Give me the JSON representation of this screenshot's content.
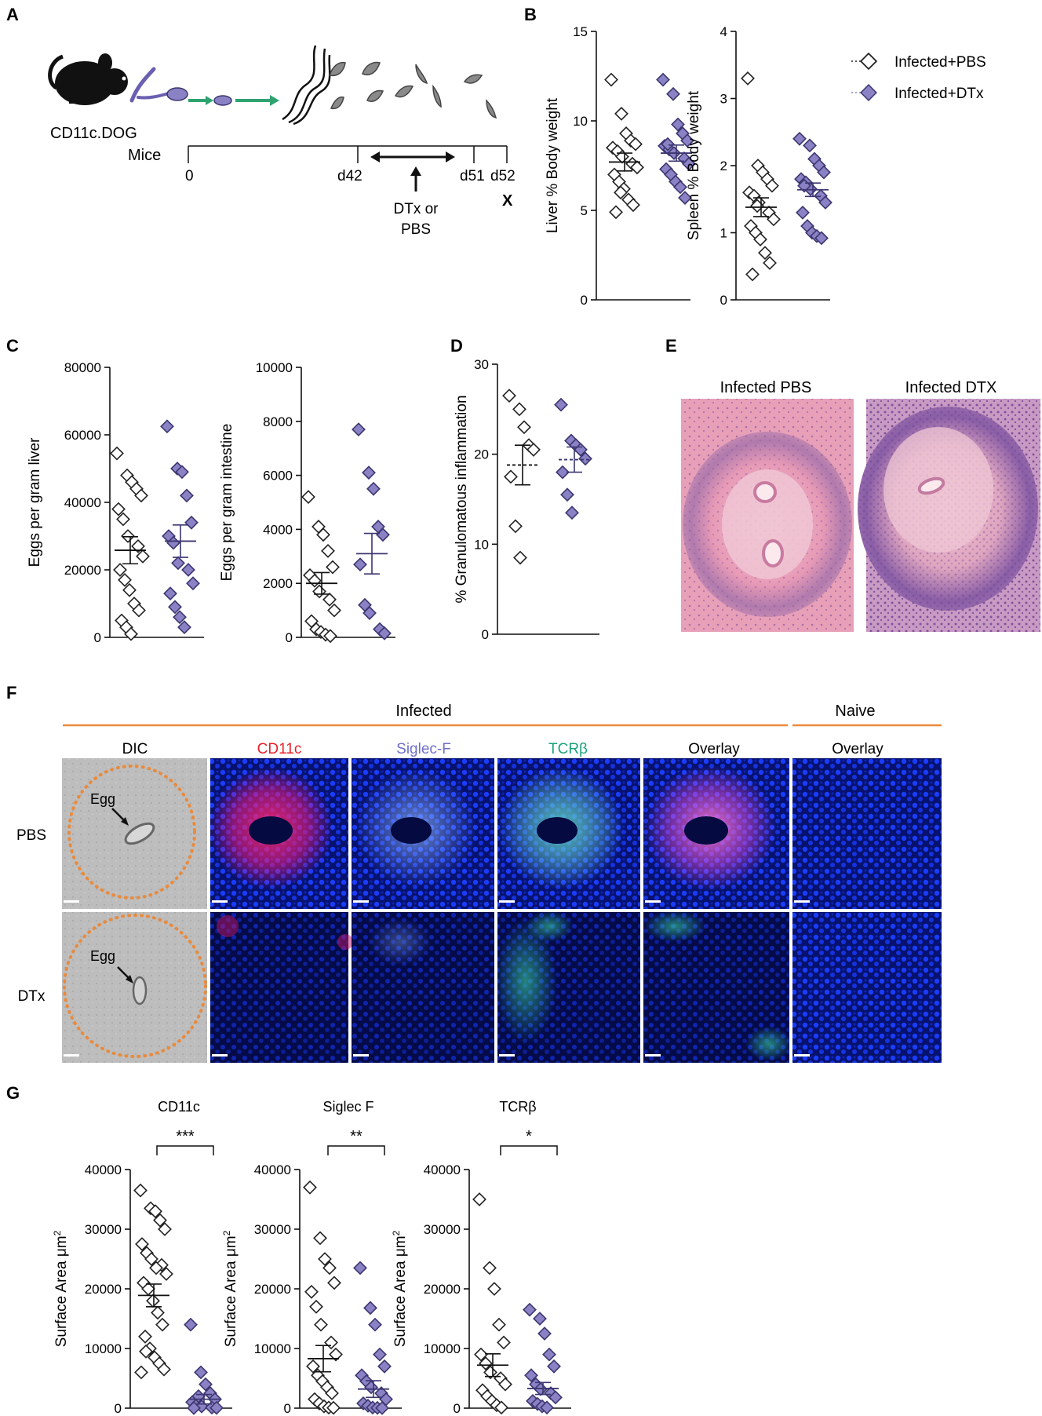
{
  "colors": {
    "dtx_fill": "#8a82c4",
    "dtx_stroke": "#3b3670",
    "pbs_fill": "#ffffff",
    "pbs_stroke": "#222222",
    "orange": "#e98a3c",
    "red_label": "#e8202a",
    "siglec_label": "#6f6fc9",
    "tcr_label": "#1aa37a",
    "he_pink": "#e7a0b8",
    "he_purple": "#7a4f9c",
    "dapi_blue": "#0b1fbf"
  },
  "panels": {
    "A": {
      "letter": "A",
      "mouse_label_1": "CD11c.DOG",
      "mouse_label_2": "Mice",
      "t0": "0",
      "t42": "d42",
      "t51": "d51",
      "t52": "d52",
      "x_mark": "X",
      "dtx_1": "DTx or",
      "dtx_2": "PBS"
    },
    "B": {
      "letter": "B"
    },
    "C": {
      "letter": "C"
    },
    "D": {
      "letter": "D"
    },
    "E": {
      "letter": "E",
      "title_pbs": "Infected PBS",
      "title_dtx": "Infected DTX"
    },
    "F": {
      "letter": "F",
      "group_infected": "Infected",
      "group_naive": "Naive",
      "col_dic": "DIC",
      "col_cd11c": "CD11c",
      "col_siglec": "Siglec-F",
      "col_tcr": "TCRβ",
      "col_overlay": "Overlay",
      "col_overlay_naive": "Overlay",
      "row_pbs": "PBS",
      "row_dtx": "DTx",
      "egg_label": "Egg"
    },
    "G": {
      "letter": "G",
      "title_cd11c": "CD11c",
      "title_siglec": "Siglec F",
      "title_tcr": "TCRβ",
      "sig_cd11c": "***",
      "sig_siglec": "**",
      "sig_tcr": "*"
    }
  },
  "legend": {
    "pbs": "Infected+PBS",
    "dtx": "Infected+DTx"
  },
  "chart_data": [
    {
      "id": "B-liver",
      "type": "scatter",
      "ylabel": "Liver % Body weight",
      "ylim": [
        0,
        15
      ],
      "yticks": [
        0,
        5,
        10,
        15
      ],
      "series": [
        {
          "name": "Infected+PBS",
          "values": [
            12.3,
            10.4,
            9.3,
            8.9,
            8.7,
            8.5,
            8.3,
            8.0,
            7.6,
            7.4,
            7.0,
            6.6,
            6.2,
            5.6,
            5.3,
            4.9,
            6.0
          ],
          "mean": 7.7,
          "sem": 0.5
        },
        {
          "name": "Infected+DTx",
          "values": [
            12.3,
            11.5,
            9.8,
            9.3,
            8.9,
            8.6,
            8.4,
            8.2,
            7.9,
            7.6,
            7.3,
            7.0,
            6.6,
            6.3,
            5.7,
            8.7
          ],
          "mean": 8.2,
          "sem": 0.45
        }
      ]
    },
    {
      "id": "B-spleen",
      "type": "scatter",
      "ylabel": "Spleen % Body weight",
      "ylim": [
        0,
        4
      ],
      "yticks": [
        0,
        1,
        2,
        3,
        4
      ],
      "series": [
        {
          "name": "Infected+PBS",
          "values": [
            3.3,
            2.0,
            1.9,
            1.8,
            1.7,
            1.6,
            1.55,
            1.45,
            1.3,
            1.2,
            1.1,
            1.0,
            0.9,
            0.7,
            0.55,
            0.38,
            1.4
          ],
          "mean": 1.38,
          "sem": 0.14
        },
        {
          "name": "Infected+DTx",
          "values": [
            2.4,
            2.3,
            2.1,
            2.0,
            1.9,
            1.8,
            1.75,
            1.65,
            1.55,
            1.45,
            1.3,
            1.1,
            1.0,
            0.95,
            0.92,
            1.7
          ],
          "mean": 1.64,
          "sem": 0.1
        }
      ]
    },
    {
      "id": "C-liver",
      "type": "scatter",
      "ylabel": "Eggs per gram liver",
      "ylim": [
        0,
        80000
      ],
      "yticks": [
        0,
        20000,
        40000,
        60000,
        80000
      ],
      "series": [
        {
          "name": "Infected+PBS",
          "values": [
            54500,
            48000,
            46000,
            44000,
            42000,
            38000,
            35000,
            30000,
            27000,
            24000,
            20000,
            17000,
            14000,
            10000,
            8000,
            5000,
            3000,
            1000
          ],
          "mean": 25800,
          "sem": 4000
        },
        {
          "name": "Infected+DTx",
          "values": [
            62500,
            50000,
            49000,
            42000,
            34000,
            30000,
            28000,
            22000,
            20000,
            16000,
            13000,
            9000,
            6000,
            3000
          ],
          "mean": 28500,
          "sem": 4800
        }
      ]
    },
    {
      "id": "C-intestine",
      "type": "scatter",
      "ylabel": "Eggs per gram intestine",
      "ylim": [
        0,
        10000
      ],
      "yticks": [
        0,
        2000,
        4000,
        6000,
        8000,
        10000
      ],
      "series": [
        {
          "name": "Infected+PBS",
          "values": [
            5200,
            4100,
            3800,
            3200,
            2600,
            2300,
            2100,
            1700,
            1400,
            1000,
            600,
            300,
            200,
            100,
            50
          ],
          "mean": 2000,
          "sem": 400
        },
        {
          "name": "Infected+DTx",
          "values": [
            7700,
            6100,
            5500,
            4100,
            3800,
            2700,
            1200,
            900,
            300,
            150
          ],
          "mean": 3100,
          "sem": 750
        }
      ]
    },
    {
      "id": "D",
      "type": "scatter",
      "ylabel": "% Granulomatous inflammation",
      "ylim": [
        0,
        30
      ],
      "yticks": [
        0,
        10,
        20,
        30
      ],
      "series": [
        {
          "name": "Infected+PBS",
          "values": [
            26.5,
            25.0,
            23.0,
            21.0,
            20.5,
            17.5,
            12.0,
            8.5
          ],
          "mean": 18.8,
          "sem": 2.2
        },
        {
          "name": "Infected+DTx",
          "values": [
            25.5,
            21.5,
            21.0,
            20.5,
            19.5,
            18.0,
            15.5,
            13.5
          ],
          "mean": 19.4,
          "sem": 1.4
        }
      ]
    },
    {
      "id": "G-CD11c",
      "type": "scatter",
      "ylabel": "Surface Area μm²",
      "ylim": [
        0,
        40000
      ],
      "yticks": [
        0,
        10000,
        20000,
        30000,
        40000
      ],
      "series": [
        {
          "name": "Infected+PBS",
          "values": [
            36500,
            33500,
            33000,
            31500,
            30000,
            27500,
            26000,
            25000,
            24000,
            22500,
            21000,
            20000,
            18000,
            16000,
            14000,
            12000,
            10000,
            8500,
            7500,
            6500,
            6000,
            9500,
            23500
          ],
          "mean": 18900,
          "sem": 1900
        },
        {
          "name": "Infected+DTx",
          "values": [
            14000,
            6000,
            4000,
            2500,
            1500,
            1000,
            600,
            300,
            100,
            50,
            20,
            2000
          ],
          "mean": 1500,
          "sem": 800
        }
      ]
    },
    {
      "id": "G-SiglecF",
      "type": "scatter",
      "ylabel": "Surface Area μm²",
      "ylim": [
        0,
        40000
      ],
      "yticks": [
        0,
        10000,
        20000,
        30000,
        40000
      ],
      "series": [
        {
          "name": "Infected+PBS",
          "values": [
            37000,
            28500,
            25000,
            23500,
            21000,
            19500,
            17000,
            14000,
            11000,
            9000,
            7000,
            5500,
            4500,
            3500,
            2500,
            1500,
            800,
            300,
            100,
            50
          ],
          "mean": 8300,
          "sem": 2200
        },
        {
          "name": "Infected+DTx",
          "values": [
            23500,
            16800,
            14000,
            9000,
            7000,
            5500,
            4500,
            3500,
            2500,
            1500,
            800,
            400,
            100,
            50,
            20
          ],
          "mean": 3200,
          "sem": 1400
        }
      ]
    },
    {
      "id": "G-TCRb",
      "type": "scatter",
      "ylabel": "Surface Area μm²",
      "ylim": [
        0,
        40000
      ],
      "yticks": [
        0,
        10000,
        20000,
        30000,
        40000
      ],
      "series": [
        {
          "name": "Infected+PBS",
          "values": [
            35000,
            23500,
            20000,
            14000,
            11000,
            9000,
            7500,
            6000,
            5000,
            4000,
            3000,
            2000,
            1200,
            500,
            100
          ],
          "mean": 7200,
          "sem": 1900
        },
        {
          "name": "Infected+DTx",
          "values": [
            16500,
            15000,
            12500,
            9000,
            7000,
            5500,
            4000,
            3200,
            2500,
            1800,
            1200,
            700,
            300,
            100
          ],
          "mean": 3300,
          "sem": 1000
        }
      ]
    }
  ]
}
